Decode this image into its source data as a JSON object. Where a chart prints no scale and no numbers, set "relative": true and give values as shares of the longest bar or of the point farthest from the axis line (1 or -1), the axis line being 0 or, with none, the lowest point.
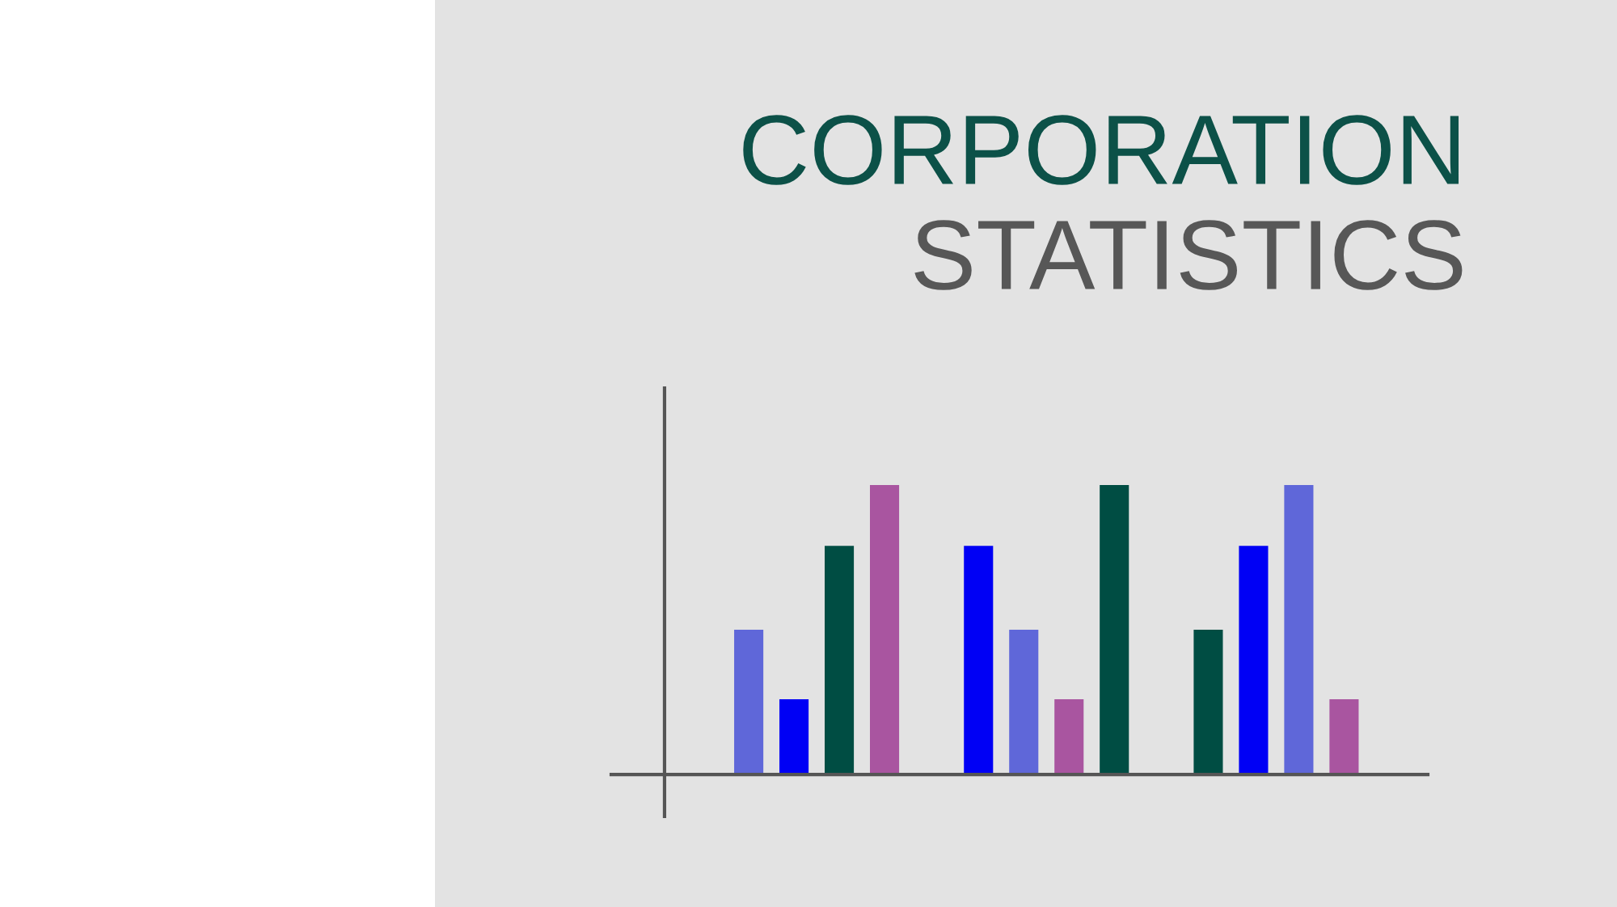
{
  "chart_data": {
    "type": "bar",
    "title": "CORPORATION",
    "subtitle": "STATISTICS",
    "relative": true,
    "grid": false,
    "categories": [
      null,
      null,
      null
    ],
    "series": [
      {
        "values": [
          0.5,
          0.79,
          0.5
        ],
        "colors": [
          "#5f67d9",
          "#0000f5",
          "#004d43"
        ]
      },
      {
        "values": [
          0.26,
          0.5,
          0.79
        ],
        "colors": [
          "#0000f5",
          "#5f67d9",
          "#0000f5"
        ]
      },
      {
        "values": [
          0.79,
          0.26,
          1
        ],
        "colors": [
          "#004d43",
          "#a955a0",
          "#5f67d9"
        ]
      },
      {
        "values": [
          1,
          1,
          0.26
        ],
        "colors": [
          "#a955a0",
          "#004d43",
          "#a955a0"
        ]
      }
    ]
  }
}
